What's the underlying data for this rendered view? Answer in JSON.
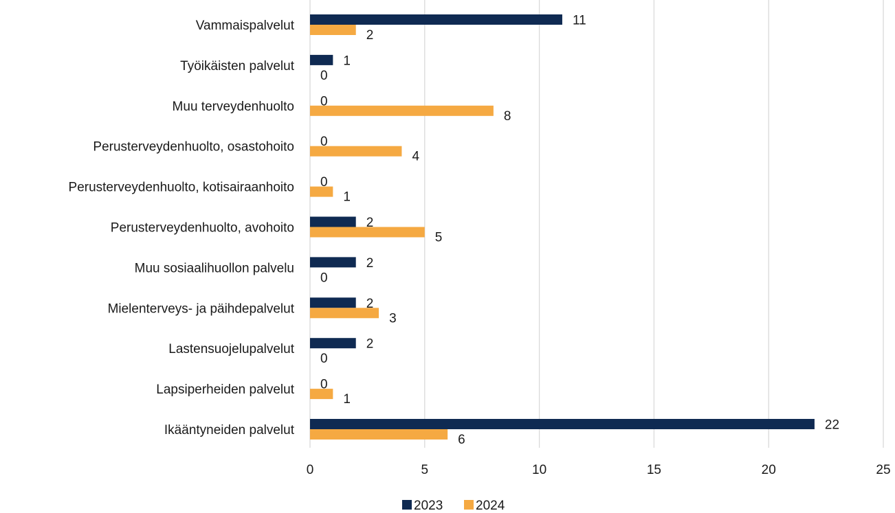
{
  "chart_data": {
    "type": "bar",
    "orientation": "horizontal",
    "title": "",
    "xlabel": "",
    "ylabel": "",
    "categories": [
      "Vammaispalvelut",
      "Työikäisten palvelut",
      "Muu terveydenhuolto",
      "Perusterveydenhuolto, osastohoito",
      "Perusterveydenhuolto, kotisairaanhoito",
      "Perusterveydenhuolto, avohoito",
      "Muu sosiaalihuollon palvelu",
      "Mielenterveys- ja päihdepalvelut",
      "Lastensuojelupalvelut",
      "Lapsiperheiden palvelut",
      "Ikääntyneiden palvelut"
    ],
    "series": [
      {
        "name": "2023",
        "color": "#0f2a52",
        "values": [
          11,
          1,
          0,
          0,
          0,
          2,
          2,
          2,
          2,
          0,
          22
        ]
      },
      {
        "name": "2024",
        "color": "#f5a942",
        "values": [
          2,
          0,
          8,
          4,
          1,
          5,
          0,
          3,
          0,
          1,
          6
        ]
      }
    ],
    "xlim": [
      0,
      25
    ],
    "xticks": [
      0,
      5,
      10,
      15,
      20,
      25
    ],
    "grid": true,
    "legend": "bottom"
  }
}
